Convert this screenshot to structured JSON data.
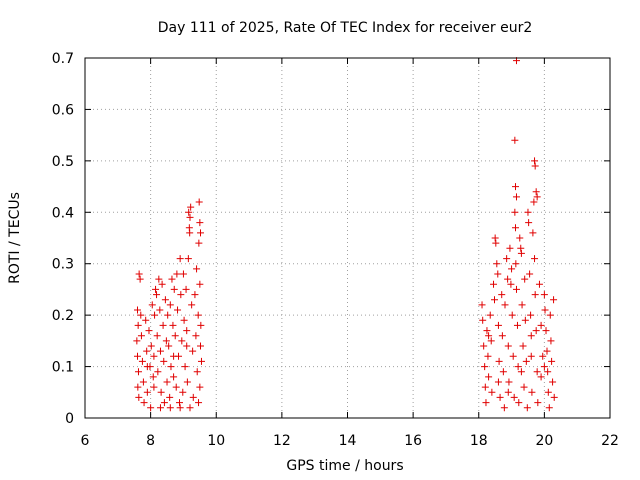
{
  "chart_data": {
    "type": "scatter",
    "title": "Day 111 of 2025, Rate Of TEC Index for receiver eur2",
    "xlabel": "GPS time / hours",
    "ylabel": "ROTI / TECUs",
    "xlim": [
      6,
      22
    ],
    "ylim": [
      0,
      0.7
    ],
    "x_ticks": [
      "6",
      "8",
      "10",
      "12",
      "14",
      "16",
      "18",
      "20",
      "22"
    ],
    "y_ticks": [
      "0",
      "0.1",
      "0.2",
      "0.3",
      "0.4",
      "0.5",
      "0.6",
      "0.7"
    ],
    "grid": true,
    "marker": "+",
    "marker_color": "#e00000",
    "series": [
      {
        "name": "eur2",
        "points": [
          [
            7.65,
            0.28
          ],
          [
            7.68,
            0.27
          ],
          [
            7.6,
            0.21
          ],
          [
            7.62,
            0.18
          ],
          [
            7.58,
            0.15
          ],
          [
            7.6,
            0.12
          ],
          [
            7.63,
            0.09
          ],
          [
            7.61,
            0.06
          ],
          [
            7.64,
            0.04
          ],
          [
            7.7,
            0.2
          ],
          [
            7.72,
            0.16
          ],
          [
            7.75,
            0.11
          ],
          [
            7.78,
            0.07
          ],
          [
            7.8,
            0.03
          ],
          [
            7.85,
            0.19
          ],
          [
            7.88,
            0.13
          ],
          [
            7.9,
            0.05
          ],
          [
            7.95,
            0.17
          ],
          [
            7.98,
            0.1
          ],
          [
            8.0,
            0.02
          ],
          [
            8.02,
            0.14
          ],
          [
            8.05,
            0.22
          ],
          [
            8.08,
            0.08
          ],
          [
            8.1,
            0.12
          ],
          [
            8.12,
            0.2
          ],
          [
            8.15,
            0.25
          ],
          [
            8.18,
            0.24
          ],
          [
            8.2,
            0.16
          ],
          [
            8.22,
            0.09
          ],
          [
            8.25,
            0.27
          ],
          [
            8.28,
            0.21
          ],
          [
            8.3,
            0.13
          ],
          [
            8.32,
            0.05
          ],
          [
            8.35,
            0.26
          ],
          [
            8.38,
            0.18
          ],
          [
            8.4,
            0.11
          ],
          [
            8.42,
            0.03
          ],
          [
            8.45,
            0.23
          ],
          [
            8.48,
            0.15
          ],
          [
            8.5,
            0.07
          ],
          [
            8.52,
            0.2
          ],
          [
            8.55,
            0.14
          ],
          [
            8.58,
            0.04
          ],
          [
            8.6,
            0.22
          ],
          [
            8.62,
            0.1
          ],
          [
            8.65,
            0.27
          ],
          [
            8.68,
            0.18
          ],
          [
            8.7,
            0.08
          ],
          [
            8.72,
            0.25
          ],
          [
            8.75,
            0.16
          ],
          [
            8.78,
            0.06
          ],
          [
            8.8,
            0.28
          ],
          [
            8.82,
            0.21
          ],
          [
            8.85,
            0.12
          ],
          [
            8.88,
            0.03
          ],
          [
            8.9,
            0.31
          ],
          [
            8.92,
            0.24
          ],
          [
            8.95,
            0.15
          ],
          [
            8.98,
            0.05
          ],
          [
            9.0,
            0.28
          ],
          [
            9.02,
            0.19
          ],
          [
            9.05,
            0.1
          ],
          [
            9.08,
            0.25
          ],
          [
            9.1,
            0.17
          ],
          [
            9.12,
            0.07
          ],
          [
            9.15,
            0.31
          ],
          [
            9.18,
            0.37
          ],
          [
            9.2,
            0.39
          ],
          [
            9.22,
            0.41
          ],
          [
            9.16,
            0.4
          ],
          [
            9.19,
            0.36
          ],
          [
            9.25,
            0.22
          ],
          [
            9.28,
            0.13
          ],
          [
            9.3,
            0.04
          ],
          [
            9.35,
            0.24
          ],
          [
            9.38,
            0.16
          ],
          [
            9.4,
            0.29
          ],
          [
            9.42,
            0.09
          ],
          [
            9.45,
            0.2
          ],
          [
            9.48,
            0.42
          ],
          [
            9.5,
            0.38
          ],
          [
            9.52,
            0.36
          ],
          [
            9.47,
            0.34
          ],
          [
            9.5,
            0.26
          ],
          [
            9.53,
            0.18
          ],
          [
            9.55,
            0.11
          ],
          [
            9.5,
            0.06
          ],
          [
            9.46,
            0.03
          ],
          [
            9.52,
            0.14
          ],
          [
            8.3,
            0.02
          ],
          [
            8.6,
            0.02
          ],
          [
            8.9,
            0.02
          ],
          [
            9.2,
            0.02
          ],
          [
            7.9,
            0.1
          ],
          [
            8.7,
            0.12
          ],
          [
            9.1,
            0.14
          ],
          [
            8.1,
            0.06
          ],
          [
            18.1,
            0.22
          ],
          [
            18.12,
            0.19
          ],
          [
            18.15,
            0.14
          ],
          [
            18.18,
            0.1
          ],
          [
            18.2,
            0.06
          ],
          [
            18.22,
            0.03
          ],
          [
            18.25,
            0.17
          ],
          [
            18.28,
            0.12
          ],
          [
            18.3,
            0.08
          ],
          [
            18.35,
            0.2
          ],
          [
            18.38,
            0.15
          ],
          [
            18.4,
            0.05
          ],
          [
            18.45,
            0.26
          ],
          [
            18.48,
            0.23
          ],
          [
            18.5,
            0.35
          ],
          [
            18.52,
            0.34
          ],
          [
            18.55,
            0.3
          ],
          [
            18.58,
            0.28
          ],
          [
            18.6,
            0.18
          ],
          [
            18.62,
            0.11
          ],
          [
            18.65,
            0.04
          ],
          [
            18.7,
            0.24
          ],
          [
            18.72,
            0.16
          ],
          [
            18.75,
            0.09
          ],
          [
            18.78,
            0.02
          ],
          [
            18.8,
            0.22
          ],
          [
            18.85,
            0.31
          ],
          [
            18.88,
            0.27
          ],
          [
            18.9,
            0.14
          ],
          [
            18.92,
            0.07
          ],
          [
            18.95,
            0.33
          ],
          [
            18.98,
            0.26
          ],
          [
            19.0,
            0.29
          ],
          [
            19.02,
            0.2
          ],
          [
            19.05,
            0.12
          ],
          [
            19.08,
            0.04
          ],
          [
            19.1,
            0.54
          ],
          [
            19.12,
            0.45
          ],
          [
            19.15,
            0.43
          ],
          [
            19.1,
            0.4
          ],
          [
            19.12,
            0.37
          ],
          [
            19.13,
            0.3
          ],
          [
            19.15,
            0.25
          ],
          [
            19.18,
            0.18
          ],
          [
            19.2,
            0.1
          ],
          [
            19.22,
            0.03
          ],
          [
            19.25,
            0.35
          ],
          [
            19.28,
            0.33
          ],
          [
            19.3,
            0.32
          ],
          [
            19.32,
            0.22
          ],
          [
            19.35,
            0.14
          ],
          [
            19.38,
            0.06
          ],
          [
            19.4,
            0.27
          ],
          [
            19.42,
            0.19
          ],
          [
            19.45,
            0.11
          ],
          [
            19.48,
            0.02
          ],
          [
            19.5,
            0.4
          ],
          [
            19.52,
            0.38
          ],
          [
            19.55,
            0.28
          ],
          [
            19.58,
            0.2
          ],
          [
            19.6,
            0.12
          ],
          [
            19.62,
            0.05
          ],
          [
            19.65,
            0.36
          ],
          [
            19.68,
            0.42
          ],
          [
            19.7,
            0.5
          ],
          [
            19.72,
            0.49
          ],
          [
            19.75,
            0.44
          ],
          [
            19.78,
            0.43
          ],
          [
            19.7,
            0.31
          ],
          [
            19.72,
            0.24
          ],
          [
            19.75,
            0.17
          ],
          [
            19.78,
            0.09
          ],
          [
            19.8,
            0.03
          ],
          [
            19.85,
            0.26
          ],
          [
            19.9,
            0.18
          ],
          [
            19.95,
            0.12
          ],
          [
            20.0,
            0.24
          ],
          [
            20.02,
            0.21
          ],
          [
            20.05,
            0.17
          ],
          [
            20.08,
            0.13
          ],
          [
            20.1,
            0.09
          ],
          [
            20.12,
            0.05
          ],
          [
            20.15,
            0.02
          ],
          [
            20.18,
            0.2
          ],
          [
            20.2,
            0.15
          ],
          [
            20.22,
            0.11
          ],
          [
            20.25,
            0.07
          ],
          [
            20.28,
            0.23
          ],
          [
            20.3,
            0.04
          ],
          [
            19.9,
            0.08
          ],
          [
            18.6,
            0.07
          ],
          [
            19.3,
            0.09
          ],
          [
            18.9,
            0.05
          ],
          [
            19.6,
            0.16
          ],
          [
            18.3,
            0.16
          ],
          [
            20.0,
            0.1
          ],
          [
            19.15,
            0.695
          ]
        ]
      }
    ]
  }
}
